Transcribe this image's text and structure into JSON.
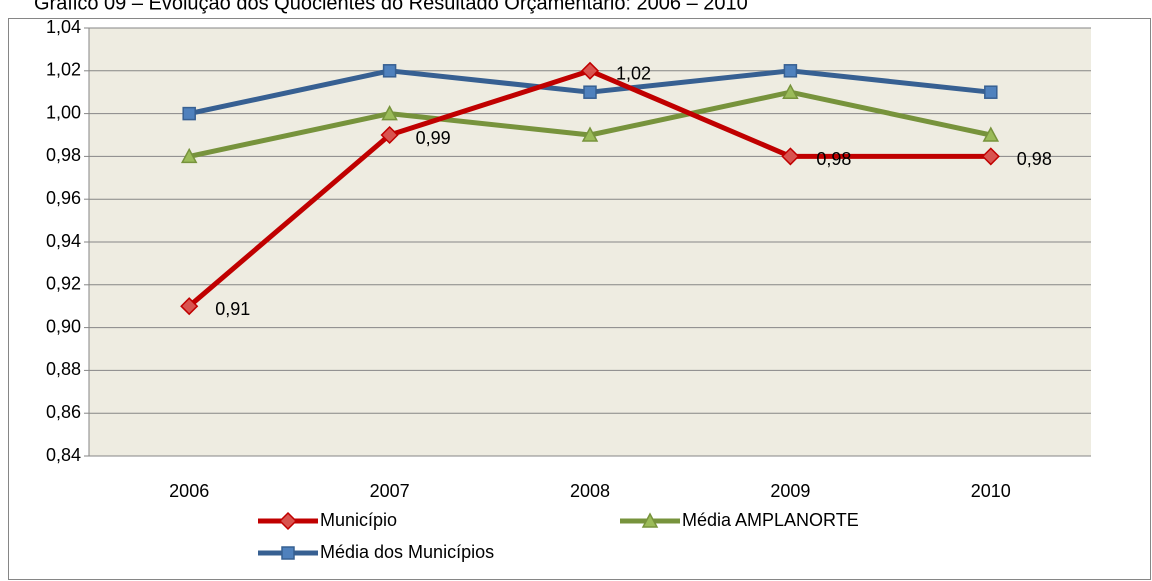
{
  "chart_data": {
    "type": "line",
    "title": "Gráfico 09 – Evolução dos Quocientes do Resultado Orçamentário: 2006 – 2010",
    "categories": [
      "2006",
      "2007",
      "2008",
      "2009",
      "2010"
    ],
    "series": [
      {
        "name": "Município",
        "color": "#c00000",
        "marker": "diamond",
        "values": [
          0.91,
          0.99,
          1.02,
          0.98,
          0.98
        ],
        "value_labels": [
          "0,91",
          "0,99",
          "1,02",
          "0,98",
          "0,98"
        ]
      },
      {
        "name": "Média AMPLANORTE",
        "color": "#77933c",
        "marker": "triangle",
        "values": [
          0.98,
          1.0,
          0.99,
          1.01,
          0.99
        ]
      },
      {
        "name": "Média dos Municípios",
        "color": "#376092",
        "marker": "square",
        "values": [
          1.0,
          1.02,
          1.01,
          1.02,
          1.01
        ]
      }
    ],
    "ylim": [
      0.84,
      1.04
    ],
    "yticks": [
      {
        "value": 0.84,
        "label": "0,84"
      },
      {
        "value": 0.86,
        "label": "0,86"
      },
      {
        "value": 0.88,
        "label": "0,88"
      },
      {
        "value": 0.9,
        "label": "0,90"
      },
      {
        "value": 0.92,
        "label": "0,92"
      },
      {
        "value": 0.94,
        "label": "0,94"
      },
      {
        "value": 0.96,
        "label": "0,96"
      },
      {
        "value": 0.98,
        "label": "0,98"
      },
      {
        "value": 1.0,
        "label": "1,00"
      },
      {
        "value": 1.02,
        "label": "1,02"
      },
      {
        "value": 1.04,
        "label": "1,04"
      }
    ],
    "grid": true,
    "legend": "bottom"
  }
}
